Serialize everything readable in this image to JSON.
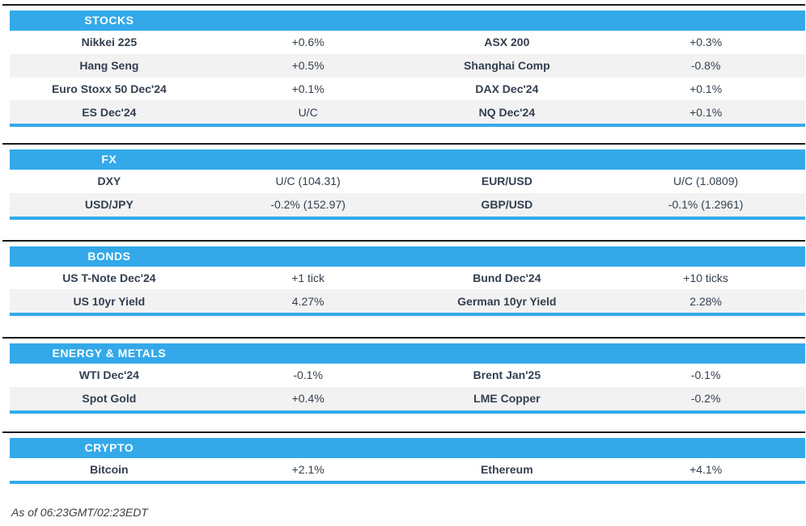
{
  "colors": {
    "header_blue": "#33a9ea",
    "top_rule": "#1a1a1a",
    "row_alt": "#f2f2f2",
    "text_dark": "#333f50"
  },
  "sections": [
    {
      "title": "STOCKS",
      "rows": [
        {
          "instrument1": "Nikkei 225",
          "change1": "+0.6%",
          "instrument2": "ASX 200",
          "change2": "+0.3%"
        },
        {
          "instrument1": "Hang Seng",
          "change1": "+0.5%",
          "instrument2": "Shanghai Comp",
          "change2": "-0.8%"
        },
        {
          "instrument1": "Euro Stoxx 50 Dec'24",
          "change1": "+0.1%",
          "instrument2": "DAX Dec'24",
          "change2": "+0.1%"
        },
        {
          "instrument1": "ES Dec'24",
          "change1": "U/C",
          "instrument2": "NQ Dec'24",
          "change2": "+0.1%"
        }
      ]
    },
    {
      "title": "FX",
      "rows": [
        {
          "instrument1": "DXY",
          "change1": "U/C (104.31)",
          "instrument2": "EUR/USD",
          "change2": "U/C (1.0809)"
        },
        {
          "instrument1": "USD/JPY",
          "change1": "-0.2% (152.97)",
          "instrument2": "GBP/USD",
          "change2": "-0.1% (1.2961)"
        }
      ]
    },
    {
      "title": "BONDS",
      "rows": [
        {
          "instrument1": "US T-Note Dec'24",
          "change1": "+1 tick",
          "instrument2": "Bund Dec'24",
          "change2": "+10 ticks"
        },
        {
          "instrument1": "US 10yr Yield",
          "change1": "4.27%",
          "instrument2": "German 10yr Yield",
          "change2": "2.28%"
        }
      ]
    },
    {
      "title": "ENERGY & METALS",
      "rows": [
        {
          "instrument1": "WTI Dec'24",
          "change1": "-0.1%",
          "instrument2": "Brent Jan'25",
          "change2": "-0.1%"
        },
        {
          "instrument1": "Spot Gold",
          "change1": "+0.4%",
          "instrument2": "LME Copper",
          "change2": "-0.2%"
        }
      ]
    },
    {
      "title": "CRYPTO",
      "rows": [
        {
          "instrument1": "Bitcoin",
          "change1": "+2.1%",
          "instrument2": "Ethereum",
          "change2": "+4.1%"
        }
      ]
    }
  ],
  "page": {
    "footer": "As of 06:23GMT/02:23EDT"
  }
}
